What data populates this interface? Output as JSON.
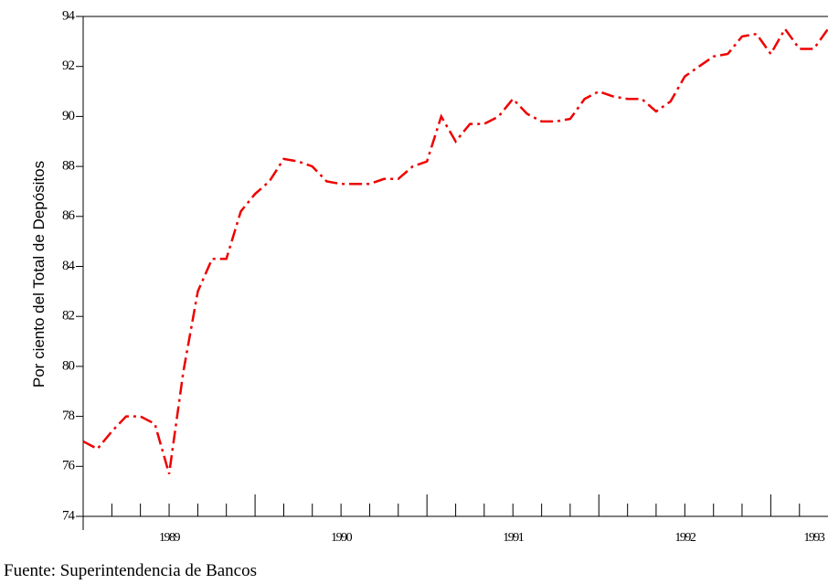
{
  "chart_data": {
    "type": "line",
    "y_label": "Por ciento del Total de Depósitos",
    "source": "Fuente:  Superintendencia de Bancos",
    "x": [
      1989,
      1989.083,
      1989.167,
      1989.25,
      1989.333,
      1989.417,
      1989.5,
      1989.583,
      1989.667,
      1989.75,
      1989.833,
      1989.917,
      1990,
      1990.083,
      1990.167,
      1990.25,
      1990.333,
      1990.417,
      1990.5,
      1990.583,
      1990.667,
      1990.75,
      1990.833,
      1990.917,
      1991,
      1991.083,
      1991.167,
      1991.25,
      1991.333,
      1991.417,
      1991.5,
      1991.583,
      1991.667,
      1991.75,
      1991.833,
      1991.917,
      1992,
      1992.083,
      1992.167,
      1992.25,
      1992.333,
      1992.417,
      1992.5,
      1992.583,
      1992.667,
      1992.75,
      1992.833,
      1992.917,
      1993,
      1993.083,
      1993.167,
      1993.25,
      1993.333
    ],
    "values": [
      77.0,
      76.7,
      77.4,
      78.0,
      78.0,
      77.7,
      75.7,
      79.8,
      83.0,
      84.3,
      84.3,
      86.2,
      86.9,
      87.4,
      88.3,
      88.2,
      88.0,
      87.4,
      87.3,
      87.3,
      87.3,
      87.5,
      87.5,
      88.0,
      88.2,
      90.0,
      89.0,
      89.7,
      89.7,
      90.0,
      90.7,
      90.1,
      89.8,
      89.8,
      89.9,
      90.7,
      91.0,
      90.8,
      90.7,
      90.7,
      90.2,
      90.6,
      91.6,
      92.0,
      92.4,
      92.5,
      93.2,
      93.3,
      92.5,
      93.5,
      92.7,
      92.7,
      93.5
    ],
    "color": "#ee0000",
    "xlim": [
      1989,
      1993.333
    ],
    "xticks": [
      {
        "value": 1989.5,
        "label": "1989"
      },
      {
        "value": 1990.5,
        "label": "1990"
      },
      {
        "value": 1991.5,
        "label": "1991"
      },
      {
        "value": 1992.5,
        "label": "1992"
      },
      {
        "value": 1993.25,
        "label": "1993"
      }
    ],
    "xticks_minor": [
      1989.167,
      1989.333,
      1989.5,
      1989.667,
      1989.833,
      1990,
      1990.167,
      1990.333,
      1990.5,
      1990.667,
      1990.833,
      1991,
      1991.167,
      1991.333,
      1991.5,
      1991.667,
      1991.833,
      1992,
      1992.167,
      1992.333,
      1992.5,
      1992.667,
      1992.833,
      1993,
      1993.167
    ],
    "ylim": [
      74,
      94
    ],
    "yticks": [
      74,
      76,
      78,
      80,
      82,
      84,
      86,
      88,
      90,
      92,
      94
    ]
  }
}
